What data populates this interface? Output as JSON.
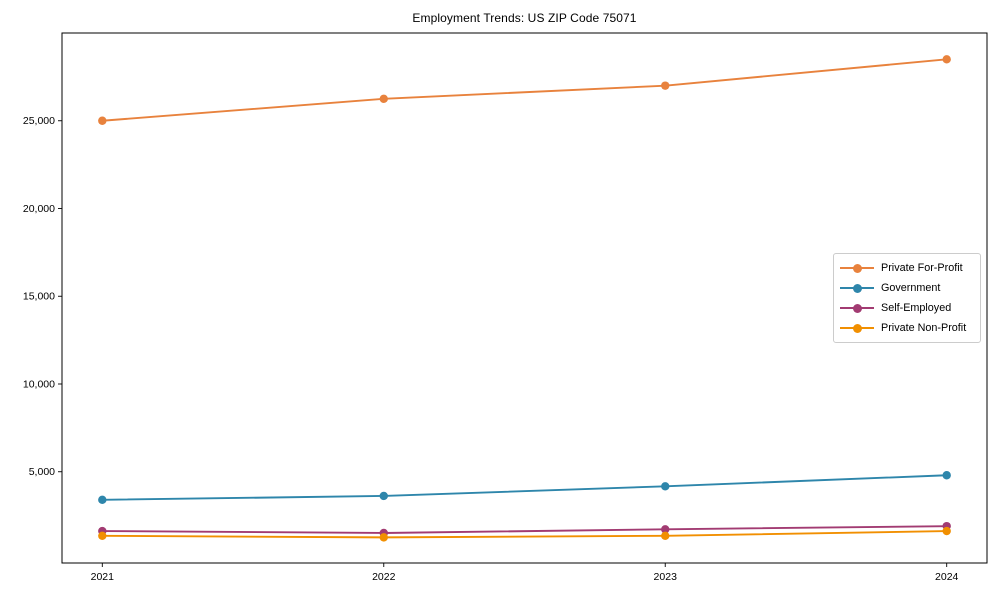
{
  "chart_data": {
    "type": "line",
    "title": "Employment Trends: US ZIP Code 75071",
    "x": [
      "2021",
      "2022",
      "2023",
      "2024"
    ],
    "series": [
      {
        "name": "Private For-Profit",
        "color": "#e8823d",
        "values": [
          25000,
          26250,
          27000,
          28500
        ]
      },
      {
        "name": "Government",
        "color": "#2e86ab",
        "values": [
          3400,
          3620,
          4170,
          4800
        ]
      },
      {
        "name": "Self-Employed",
        "color": "#a23b72",
        "values": [
          1620,
          1510,
          1720,
          1900
        ]
      },
      {
        "name": "Private Non-Profit",
        "color": "#f18f01",
        "values": [
          1350,
          1260,
          1350,
          1620
        ]
      }
    ],
    "xlabel": "",
    "ylabel": "",
    "ylim": [
      -200,
      30000
    ],
    "yticks": [
      5000,
      10000,
      15000,
      20000,
      25000
    ],
    "ytick_labels": [
      "5,000",
      "10,000",
      "15,000",
      "20,000",
      "25,000"
    ],
    "grid": false,
    "legend_position": "center right",
    "axis_color": "#000000",
    "background_color": "#ffffff"
  }
}
